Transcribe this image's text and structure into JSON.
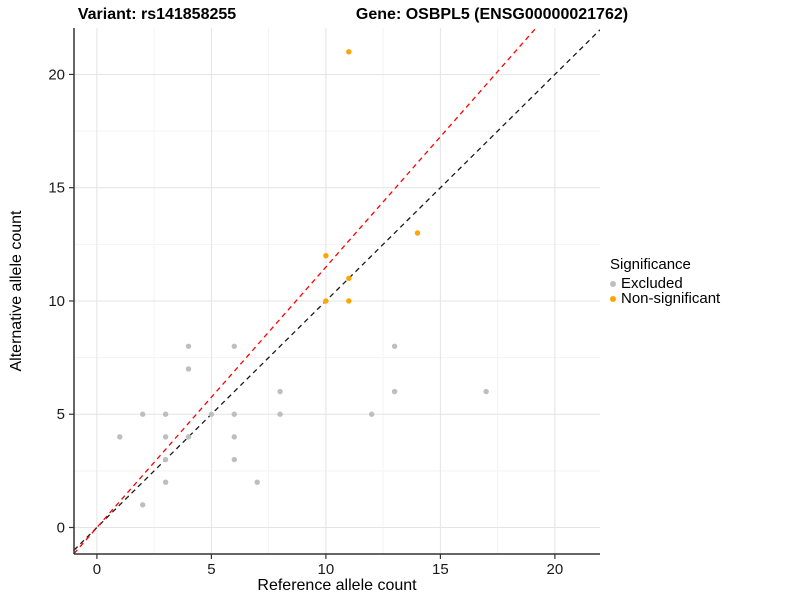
{
  "header": {
    "variant_title": "Variant: rs141858255",
    "gene_title": "Gene: OSBPL5 (ENSG00000021762)"
  },
  "chart_data": {
    "type": "scatter",
    "xlabel": "Reference allele count",
    "ylabel": "Alternative allele count",
    "xlim": [
      -1.0,
      21.97
    ],
    "ylim": [
      -1.17,
      22.05
    ],
    "xticks": [
      0,
      5,
      10,
      15,
      20
    ],
    "yticks": [
      0,
      5,
      10,
      15,
      20
    ],
    "minor_grid_step": 2.5,
    "grid": true,
    "series": [
      {
        "name": "Excluded",
        "color": "#BEBEBE",
        "points": [
          [
            1,
            4
          ],
          [
            2,
            1
          ],
          [
            2,
            5
          ],
          [
            3,
            2
          ],
          [
            3,
            3
          ],
          [
            3,
            4
          ],
          [
            3,
            5
          ],
          [
            4,
            4
          ],
          [
            4,
            7
          ],
          [
            4,
            8
          ],
          [
            5,
            5
          ],
          [
            6,
            3
          ],
          [
            6,
            4
          ],
          [
            6,
            5
          ],
          [
            6,
            8
          ],
          [
            7,
            2
          ],
          [
            8,
            5
          ],
          [
            8,
            6
          ],
          [
            12,
            5
          ],
          [
            13,
            6
          ],
          [
            13,
            8
          ],
          [
            17,
            6
          ]
        ]
      },
      {
        "name": "Non-significant",
        "color": "#FFA500",
        "points": [
          [
            10,
            10
          ],
          [
            10,
            12
          ],
          [
            11,
            10
          ],
          [
            11,
            11
          ],
          [
            11,
            21
          ],
          [
            14,
            13
          ]
        ]
      }
    ],
    "lines": [
      {
        "name": "identity-line",
        "color": "#1A1A1A",
        "slope": 1.0,
        "intercept": 0,
        "dashed": true
      },
      {
        "name": "allele-ratio-line",
        "color": "#FF0000",
        "slope": 1.15,
        "intercept": 0,
        "dashed": true
      }
    ],
    "legend": {
      "title": "Significance",
      "position": "right",
      "entries": [
        {
          "label": "Excluded",
          "color": "#BEBEBE"
        },
        {
          "label": "Non-significant",
          "color": "#FFA500"
        }
      ]
    },
    "colors": {
      "grid_major": "#E4E4E4",
      "grid_minor": "#F3F3F3",
      "axis_line": "#333333",
      "tick_label": "#1A1A1A"
    }
  }
}
